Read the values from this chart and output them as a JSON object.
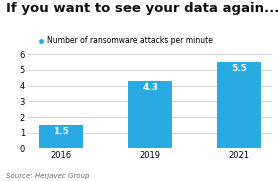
{
  "title": "If you want to see your data again...",
  "legend_label": "Number of ransomware attacks per minute",
  "source": "Source: Herjavec Group",
  "categories": [
    "2016",
    "2019",
    "2021"
  ],
  "values": [
    1.5,
    4.3,
    5.5
  ],
  "bar_color": "#29ABE2",
  "ylim": [
    0,
    6
  ],
  "yticks": [
    0,
    1,
    2,
    3,
    4,
    5,
    6
  ],
  "bar_label_color": "#ffffff",
  "bar_label_fontsize": 6.5,
  "title_fontsize": 9.5,
  "legend_fontsize": 5.5,
  "source_fontsize": 5.0,
  "tick_fontsize": 6,
  "background_color": "#ffffff",
  "grid_color": "#cccccc",
  "title_color": "#111111",
  "source_color": "#666666"
}
